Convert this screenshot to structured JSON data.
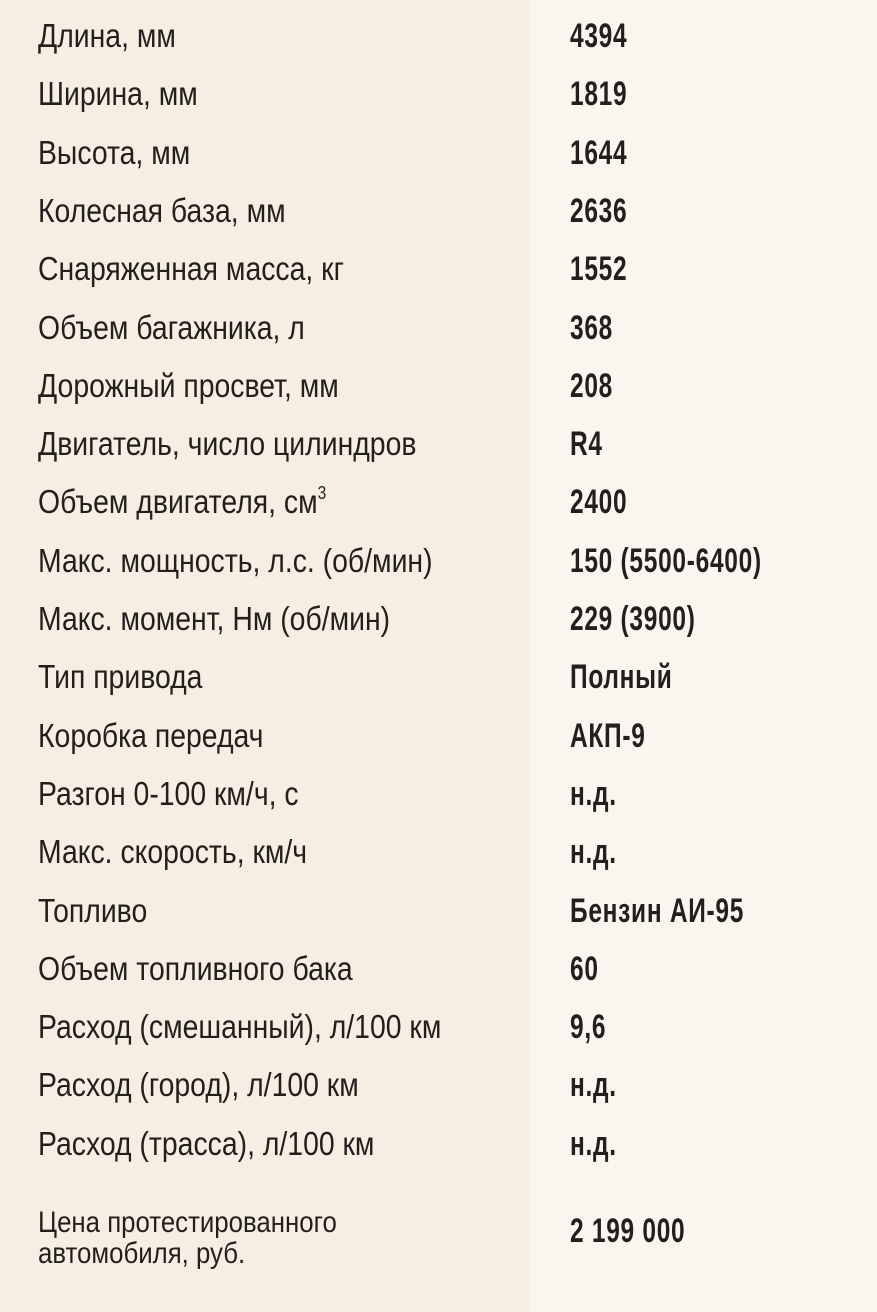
{
  "specs": [
    {
      "label": "Длина, мм",
      "value": "4394"
    },
    {
      "label": "Ширина, мм",
      "value": "1819"
    },
    {
      "label": "Высота, мм",
      "value": "1644"
    },
    {
      "label": "Колесная база, мм",
      "value": "2636"
    },
    {
      "label": "Снаряженная масса, кг",
      "value": "1552"
    },
    {
      "label": "Объем багажника, л",
      "value": "368"
    },
    {
      "label": "Дорожный просвет, мм",
      "value": "208"
    },
    {
      "label": "Двигатель, число цилиндров",
      "value": "R4"
    },
    {
      "label": "Объем двигателя, см",
      "sup": "3",
      "value": "2400"
    },
    {
      "label": "Макс. мощность, л.с. (об/мин)",
      "value": "150 (5500-6400)"
    },
    {
      "label": "Макс. момент, Нм (об/мин)",
      "value": "229 (3900)"
    },
    {
      "label": "Тип привода",
      "value": "Полный"
    },
    {
      "label": "Коробка передач",
      "value": "АКП-9"
    },
    {
      "label": "Разгон 0-100 км/ч, с",
      "value": "н.д."
    },
    {
      "label": "Макс. скорость, км/ч",
      "value": "н.д."
    },
    {
      "label": "Топливо",
      "value": "Бензин АИ-95"
    },
    {
      "label": "Объем топливного бака",
      "value": "60"
    },
    {
      "label": "Расход (смешанный), л/100 км",
      "value": "9,6"
    },
    {
      "label": "Расход (город), л/100 км",
      "value": "н.д."
    },
    {
      "label": "Расход (трасса), л/100 км",
      "value": "н.д."
    }
  ],
  "price": {
    "label_line1": "Цена протестированного",
    "label_line2": "автомобиля, руб.",
    "value": "2 199 000"
  }
}
